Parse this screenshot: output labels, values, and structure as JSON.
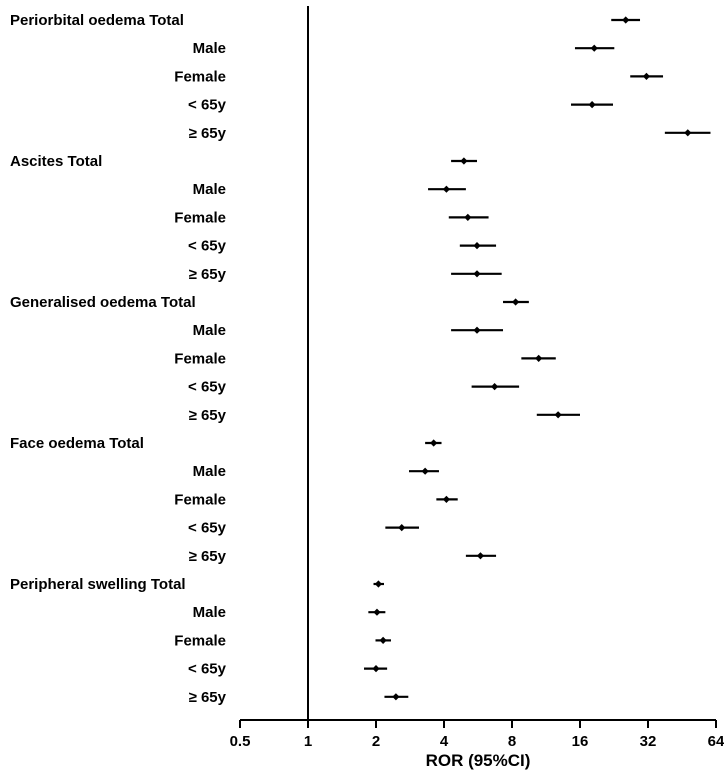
{
  "chart_data": {
    "type": "forest",
    "xlabel": "ROR (95%CI)",
    "x_scale": "log2",
    "xlim": [
      0.5,
      64
    ],
    "xticks": [
      0.5,
      1,
      2,
      4,
      8,
      16,
      32,
      64
    ],
    "xtick_labels": [
      "0.5",
      "1",
      "2",
      "4",
      "8",
      "16",
      "32",
      "64"
    ],
    "reference_line": 1,
    "rows": [
      {
        "label": "Periorbital oedema Total",
        "group_header": true,
        "estimate": 25.5,
        "ci_low": 22.0,
        "ci_high": 29.5
      },
      {
        "label": "Male",
        "group_header": false,
        "estimate": 18.5,
        "ci_low": 15.2,
        "ci_high": 22.7
      },
      {
        "label": "Female",
        "group_header": false,
        "estimate": 31.5,
        "ci_low": 26.7,
        "ci_high": 37.3
      },
      {
        "label": "< 65y",
        "group_header": false,
        "estimate": 18.1,
        "ci_low": 14.6,
        "ci_high": 22.4
      },
      {
        "label": "≥ 65y",
        "group_header": false,
        "estimate": 48.0,
        "ci_low": 38.0,
        "ci_high": 60.5
      },
      {
        "label": "Ascites Total",
        "group_header": true,
        "estimate": 4.9,
        "ci_low": 4.3,
        "ci_high": 5.6
      },
      {
        "label": "Male",
        "group_header": false,
        "estimate": 4.1,
        "ci_low": 3.4,
        "ci_high": 5.0
      },
      {
        "label": "Female",
        "group_header": false,
        "estimate": 5.1,
        "ci_low": 4.2,
        "ci_high": 6.3
      },
      {
        "label": "< 65y",
        "group_header": false,
        "estimate": 5.6,
        "ci_low": 4.7,
        "ci_high": 6.8
      },
      {
        "label": "≥ 65y",
        "group_header": false,
        "estimate": 5.6,
        "ci_low": 4.3,
        "ci_high": 7.2
      },
      {
        "label": "Generalised oedema Total",
        "group_header": true,
        "estimate": 8.3,
        "ci_low": 7.3,
        "ci_high": 9.5
      },
      {
        "label": "Male",
        "group_header": false,
        "estimate": 5.6,
        "ci_low": 4.3,
        "ci_high": 7.3
      },
      {
        "label": "Female",
        "group_header": false,
        "estimate": 10.5,
        "ci_low": 8.8,
        "ci_high": 12.5
      },
      {
        "label": "< 65y",
        "group_header": false,
        "estimate": 6.7,
        "ci_low": 5.3,
        "ci_high": 8.6
      },
      {
        "label": "≥ 65y",
        "group_header": false,
        "estimate": 12.8,
        "ci_low": 10.3,
        "ci_high": 16.0
      },
      {
        "label": "Face oedema Total",
        "group_header": true,
        "estimate": 3.6,
        "ci_low": 3.3,
        "ci_high": 3.9
      },
      {
        "label": "Male",
        "group_header": false,
        "estimate": 3.3,
        "ci_low": 2.8,
        "ci_high": 3.8
      },
      {
        "label": "Female",
        "group_header": false,
        "estimate": 4.1,
        "ci_low": 3.7,
        "ci_high": 4.6
      },
      {
        "label": "< 65y",
        "group_header": false,
        "estimate": 2.6,
        "ci_low": 2.2,
        "ci_high": 3.1
      },
      {
        "label": "≥ 65y",
        "group_header": false,
        "estimate": 5.8,
        "ci_low": 5.0,
        "ci_high": 6.8
      },
      {
        "label": "Peripheral swelling Total",
        "group_header": true,
        "estimate": 2.05,
        "ci_low": 1.95,
        "ci_high": 2.17
      },
      {
        "label": "Male",
        "group_header": false,
        "estimate": 2.02,
        "ci_low": 1.85,
        "ci_high": 2.2
      },
      {
        "label": "Female",
        "group_header": false,
        "estimate": 2.15,
        "ci_low": 1.99,
        "ci_high": 2.33
      },
      {
        "label": "< 65y",
        "group_header": false,
        "estimate": 2.0,
        "ci_low": 1.77,
        "ci_high": 2.24
      },
      {
        "label": "≥ 65y",
        "group_header": false,
        "estimate": 2.45,
        "ci_low": 2.18,
        "ci_high": 2.78
      }
    ]
  }
}
